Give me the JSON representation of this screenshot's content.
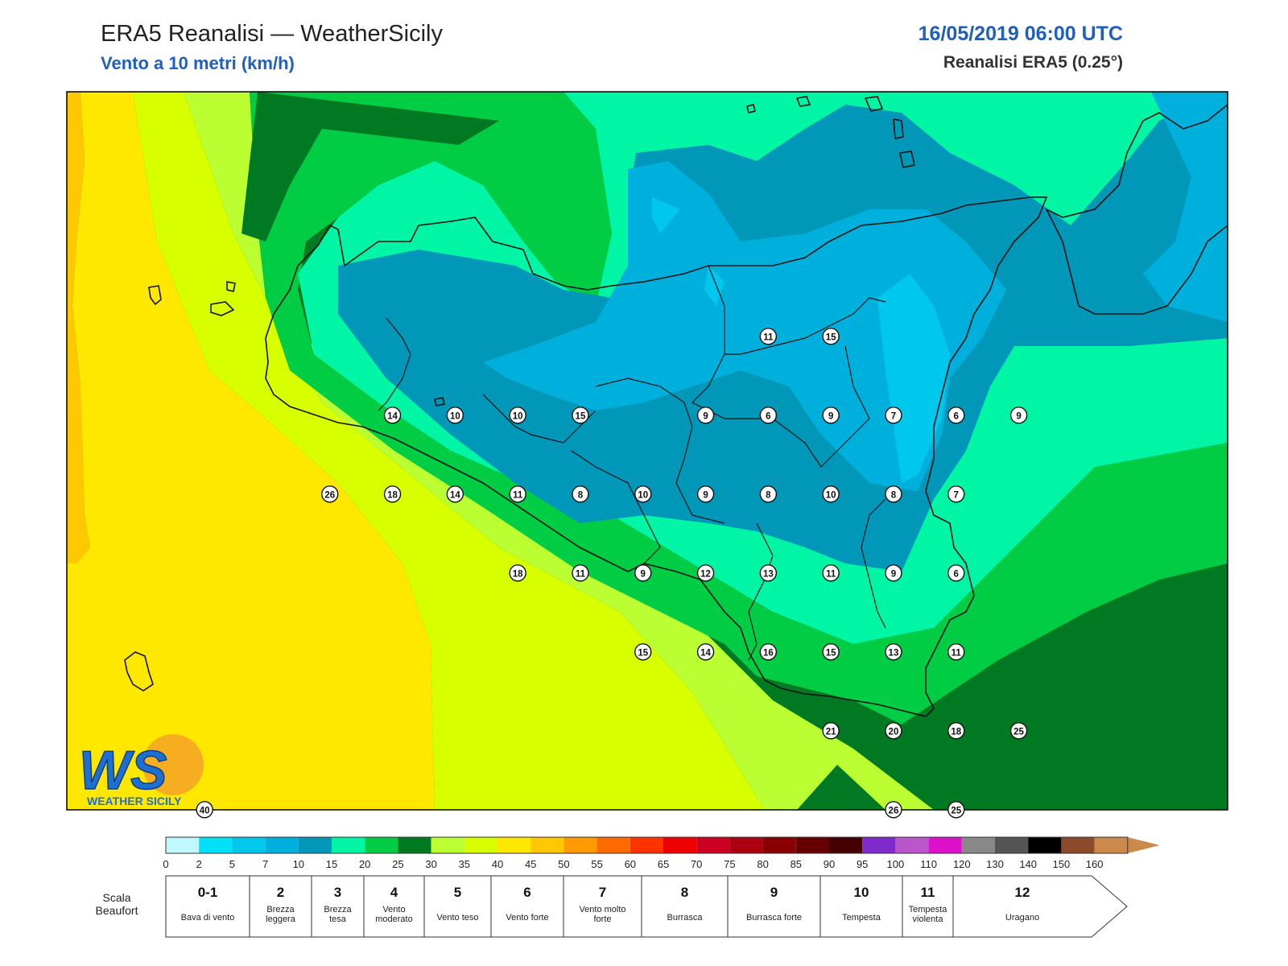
{
  "header": {
    "title": "ERA5 Reanalisi — WeatherSicily",
    "subtitle": "Vento a 10 metri (km/h)",
    "datetime": "16/05/2019 06:00 UTC",
    "source": "Reanalisi ERA5 (0.25°)"
  },
  "logo": {
    "letters": "WS",
    "text": "WEATHER SICILY"
  },
  "colors": {
    "c0": "#d6fbff",
    "c2": "#00e1f8",
    "c5": "#00c8ec",
    "c7": "#00b0dc",
    "c10": "#0097b8",
    "c15": "#00f5a5",
    "c20": "#00cc44",
    "c25": "#007a22",
    "c30": "#bbff33",
    "c35": "#d8ff00",
    "c40": "#ffe800",
    "c45": "#ffc800",
    "coast": "#111111"
  },
  "colorbar": {
    "colors": [
      "#bff8ff",
      "#00e1f8",
      "#00c8ec",
      "#00b0dc",
      "#0097b8",
      "#00f5a5",
      "#00cc44",
      "#007a22",
      "#bbff33",
      "#d8ff00",
      "#ffe800",
      "#ffc800",
      "#ff9a00",
      "#ff6a00",
      "#ff3300",
      "#ee0000",
      "#cc0022",
      "#aa0011",
      "#880000",
      "#660000",
      "#440000",
      "#7f2acc",
      "#bb55cc",
      "#dd11cc",
      "#888888",
      "#555555",
      "#000000",
      "#8b4a2a",
      "#cc8a4a"
    ],
    "labels": [
      "0",
      "2",
      "5",
      "7",
      "10",
      "15",
      "20",
      "25",
      "30",
      "35",
      "40",
      "45",
      "50",
      "55",
      "60",
      "65",
      "70",
      "75",
      "80",
      "85",
      "90",
      "95",
      "100",
      "110",
      "120",
      "130",
      "140",
      "150",
      "160"
    ]
  },
  "beaufort": {
    "label": "Scala Beaufort",
    "items": [
      {
        "force": "0-1",
        "name": "Bava di vento"
      },
      {
        "force": "2",
        "name": "Brezza leggera"
      },
      {
        "force": "3",
        "name": "Brezza tesa"
      },
      {
        "force": "4",
        "name": "Vento moderato"
      },
      {
        "force": "5",
        "name": "Vento teso"
      },
      {
        "force": "6",
        "name": "Vento forte"
      },
      {
        "force": "7",
        "name": "Vento molto forte"
      },
      {
        "force": "8",
        "name": "Burrasca"
      },
      {
        "force": "9",
        "name": "Burrasca forte"
      },
      {
        "force": "10",
        "name": "Tempesta"
      },
      {
        "force": "11",
        "name": "Tempesta violenta"
      },
      {
        "force": "12",
        "name": "Uragano"
      }
    ]
  },
  "stations": [
    {
      "value": "11",
      "lon": 15.4,
      "lat": 38.5
    },
    {
      "value": "15",
      "lon": 15.9,
      "lat": 38.5
    },
    {
      "value": "14",
      "lon": 12.4,
      "lat": 38.0
    },
    {
      "value": "10",
      "lon": 12.9,
      "lat": 38.0
    },
    {
      "value": "10",
      "lon": 13.4,
      "lat": 38.0
    },
    {
      "value": "15",
      "lon": 13.9,
      "lat": 38.0
    },
    {
      "value": "9",
      "lon": 14.9,
      "lat": 38.0
    },
    {
      "value": "6",
      "lon": 15.4,
      "lat": 38.0
    },
    {
      "value": "9",
      "lon": 15.9,
      "lat": 38.0
    },
    {
      "value": "7",
      "lon": 16.4,
      "lat": 38.0
    },
    {
      "value": "6",
      "lon": 16.9,
      "lat": 38.0
    },
    {
      "value": "9",
      "lon": 17.4,
      "lat": 38.0
    },
    {
      "value": "26",
      "lon": 11.9,
      "lat": 37.5
    },
    {
      "value": "18",
      "lon": 12.4,
      "lat": 37.5
    },
    {
      "value": "14",
      "lon": 12.9,
      "lat": 37.5
    },
    {
      "value": "11",
      "lon": 13.4,
      "lat": 37.5
    },
    {
      "value": "8",
      "lon": 13.9,
      "lat": 37.5
    },
    {
      "value": "10",
      "lon": 14.4,
      "lat": 37.5
    },
    {
      "value": "9",
      "lon": 14.9,
      "lat": 37.5
    },
    {
      "value": "8",
      "lon": 15.4,
      "lat": 37.5
    },
    {
      "value": "10",
      "lon": 15.9,
      "lat": 37.5
    },
    {
      "value": "8",
      "lon": 16.4,
      "lat": 37.5
    },
    {
      "value": "7",
      "lon": 16.9,
      "lat": 37.5
    },
    {
      "value": "18",
      "lon": 13.4,
      "lat": 37.0
    },
    {
      "value": "11",
      "lon": 13.9,
      "lat": 37.0
    },
    {
      "value": "9",
      "lon": 14.4,
      "lat": 37.0
    },
    {
      "value": "12",
      "lon": 14.9,
      "lat": 37.0
    },
    {
      "value": "13",
      "lon": 15.4,
      "lat": 37.0
    },
    {
      "value": "11",
      "lon": 15.9,
      "lat": 37.0
    },
    {
      "value": "9",
      "lon": 16.4,
      "lat": 37.0
    },
    {
      "value": "6",
      "lon": 16.9,
      "lat": 37.0
    },
    {
      "value": "15",
      "lon": 14.4,
      "lat": 36.5
    },
    {
      "value": "14",
      "lon": 14.9,
      "lat": 36.5
    },
    {
      "value": "16",
      "lon": 15.4,
      "lat": 36.5
    },
    {
      "value": "15",
      "lon": 15.9,
      "lat": 36.5
    },
    {
      "value": "13",
      "lon": 16.4,
      "lat": 36.5
    },
    {
      "value": "11",
      "lon": 16.9,
      "lat": 36.5
    },
    {
      "value": "21",
      "lon": 15.9,
      "lat": 36.0
    },
    {
      "value": "20",
      "lon": 16.4,
      "lat": 36.0
    },
    {
      "value": "18",
      "lon": 16.9,
      "lat": 36.0
    },
    {
      "value": "25",
      "lon": 17.4,
      "lat": 36.0
    },
    {
      "value": "26",
      "lon": 16.4,
      "lat": 35.5
    },
    {
      "value": "25",
      "lon": 16.9,
      "lat": 35.5
    },
    {
      "value": "40",
      "lon": 10.9,
      "lat": 35.5
    }
  ]
}
